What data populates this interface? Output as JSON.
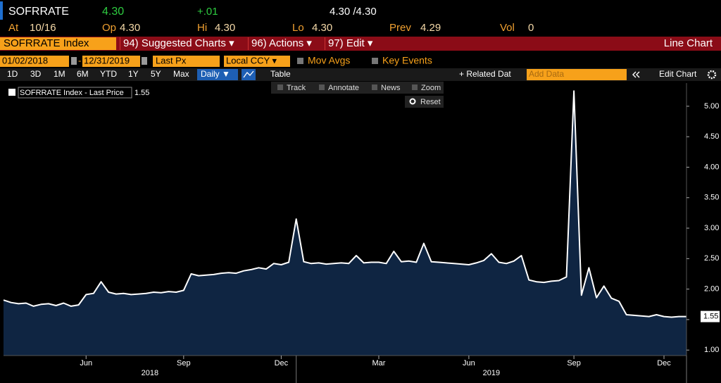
{
  "quote": {
    "ticker": "SOFRRATE",
    "last": "4.30",
    "change": "+.01",
    "bid_ask": "4.30 /4.30",
    "stats": [
      {
        "label": "At",
        "value": "10/16"
      },
      {
        "label": "Op",
        "value": "4.30"
      },
      {
        "label": "Hi",
        "value": "4.30"
      },
      {
        "label": "Lo",
        "value": "4.30"
      },
      {
        "label": "Prev",
        "value": "4.29"
      },
      {
        "label": "Vol",
        "value": "0"
      }
    ]
  },
  "toolbar": {
    "security": "SOFRRATE Index",
    "menus": [
      "94) Suggested Charts ▾",
      "96) Actions ▾",
      "97) Edit ▾"
    ],
    "chart_type": "Line Chart"
  },
  "controls": {
    "start_date": "01/02/2018",
    "separator": "-",
    "end_date": "12/31/2019",
    "field": "Last Px",
    "currency": "Local CCY ▾",
    "toggles": [
      "Mov Avgs",
      "Key Events"
    ]
  },
  "ranges": [
    "1D",
    "3D",
    "1M",
    "6M",
    "YTD",
    "1Y",
    "5Y",
    "Max"
  ],
  "frequency": "Daily ▼",
  "table": "Table",
  "related": "+ Related Dat",
  "add_data": "Add Data",
  "edit_chart": "Edit Chart",
  "chart_tools": [
    "Track",
    "Annotate",
    "News",
    "Zoom"
  ],
  "reset": "Reset",
  "chart_data": {
    "type": "line",
    "categories": [
      null,
      null,
      null,
      null,
      null,
      null,
      null,
      null,
      null,
      null,
      null,
      "Jun",
      null,
      null,
      null,
      null,
      null,
      null,
      null,
      null,
      null,
      null,
      null,
      null,
      "Sep",
      null,
      null,
      null,
      null,
      null,
      null,
      null,
      null,
      null,
      null,
      null,
      null,
      "Dec",
      null,
      null,
      null,
      null,
      null,
      null,
      null,
      null,
      null,
      null,
      null,
      null,
      "Mar",
      null,
      null,
      null,
      null,
      null,
      null,
      null,
      null,
      null,
      null,
      null,
      "Jun",
      null,
      null,
      null,
      null,
      null,
      null,
      null,
      null,
      null,
      null,
      null,
      null,
      null,
      "Sep",
      null,
      null,
      null,
      null,
      null,
      null,
      null,
      null,
      null,
      null,
      null,
      "Dec",
      null,
      null,
      null
    ],
    "years": [
      "2018",
      "2019"
    ],
    "series": [
      {
        "name": "SOFRRATE Index - Last Price",
        "color": "#ffffff",
        "fill": "#0f2542",
        "values": [
          1.82,
          1.78,
          1.76,
          1.77,
          1.72,
          1.75,
          1.76,
          1.73,
          1.77,
          1.72,
          1.74,
          1.91,
          1.93,
          2.12,
          1.95,
          1.92,
          1.93,
          1.91,
          1.92,
          1.93,
          1.95,
          1.94,
          1.96,
          1.95,
          1.98,
          2.25,
          2.22,
          2.23,
          2.24,
          2.26,
          2.27,
          2.26,
          2.3,
          2.32,
          2.35,
          2.33,
          2.42,
          2.4,
          2.44,
          3.15,
          2.45,
          2.42,
          2.43,
          2.41,
          2.42,
          2.43,
          2.42,
          2.55,
          2.43,
          2.44,
          2.44,
          2.42,
          2.62,
          2.45,
          2.46,
          2.44,
          2.75,
          2.45,
          2.44,
          2.43,
          2.42,
          2.41,
          2.4,
          2.43,
          2.47,
          2.58,
          2.44,
          2.42,
          2.46,
          2.55,
          2.15,
          2.12,
          2.11,
          2.13,
          2.14,
          2.2,
          5.25,
          1.9,
          2.35,
          1.86,
          2.05,
          1.85,
          1.8,
          1.58,
          1.57,
          1.56,
          1.55,
          1.58,
          1.55,
          1.54,
          1.55,
          1.55
        ]
      }
    ],
    "ylim": [
      0.91,
      5.38
    ],
    "yticks": [
      {
        "value": 1,
        "label": "1.00"
      },
      {
        "value": 1.5,
        "label": "1.50"
      },
      {
        "value": 2,
        "label": "2.00"
      },
      {
        "value": 2.5,
        "label": "2.50"
      },
      {
        "value": 3,
        "label": "3.00"
      },
      {
        "value": 3.5,
        "label": "3.50"
      },
      {
        "value": 4,
        "label": "4.00"
      },
      {
        "value": 4.5,
        "label": "4.50"
      },
      {
        "value": 5,
        "label": "5.00"
      }
    ],
    "grid": false
  }
}
